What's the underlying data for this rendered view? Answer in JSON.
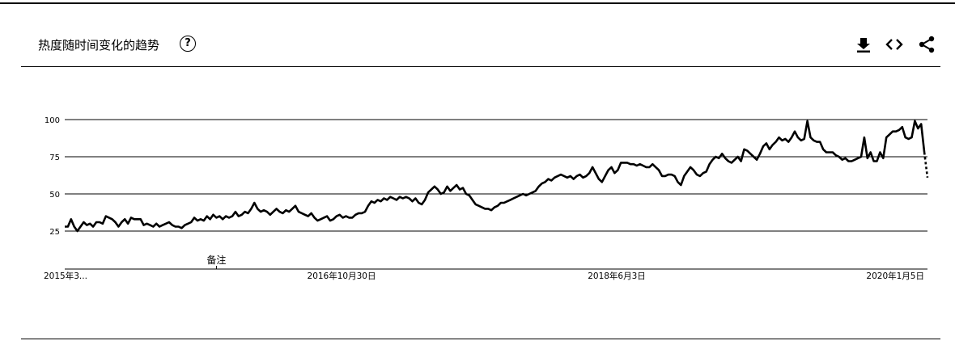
{
  "header": {
    "title": "热度随时间变化的趋势",
    "help_icon": "help-circle-icon",
    "actions": [
      {
        "name": "download-button",
        "icon": "download-icon"
      },
      {
        "name": "embed-button",
        "icon": "code-icon"
      },
      {
        "name": "share-button",
        "icon": "share-icon"
      }
    ]
  },
  "chart_data": {
    "type": "line",
    "title": "",
    "xlabel": "",
    "ylabel": "",
    "ylim": [
      0,
      100
    ],
    "yticks": [
      25,
      50,
      75,
      100
    ],
    "grid": true,
    "x_tick_labels": [
      "2015年3...",
      "2016年10月30日",
      "2018年6月3日",
      "2020年1月5日"
    ],
    "annotation": {
      "text": "备注",
      "x_index": 48
    },
    "series": [
      {
        "values": [
          28,
          28,
          33,
          28,
          25,
          28,
          31,
          29,
          30,
          28,
          31,
          31,
          30,
          35,
          34,
          33,
          31,
          28,
          31,
          33,
          30,
          34,
          33,
          33,
          33,
          29,
          30,
          29,
          28,
          30,
          28,
          29,
          30,
          31,
          29,
          28,
          28,
          27,
          29,
          30,
          31,
          34,
          32,
          33,
          32,
          35,
          33,
          36,
          34,
          35,
          33,
          35,
          34,
          35,
          38,
          35,
          36,
          38,
          37,
          40,
          44,
          40,
          38,
          39,
          38,
          36,
          38,
          40,
          38,
          37,
          39,
          38,
          40,
          42,
          38,
          37,
          36,
          35,
          37,
          34,
          32,
          33,
          34,
          35,
          32,
          33,
          35,
          36,
          34,
          35,
          34,
          34,
          36,
          37,
          37,
          38,
          42,
          45,
          44,
          46,
          45,
          47,
          46,
          48,
          47,
          46,
          48,
          47,
          48,
          47,
          45,
          47,
          44,
          43,
          46,
          51,
          53,
          55,
          53,
          50,
          51,
          55,
          52,
          54,
          56,
          53,
          54,
          50,
          49,
          46,
          43,
          42,
          41,
          40,
          40,
          39,
          41,
          42,
          44,
          44,
          45,
          46,
          47,
          48,
          49,
          50,
          49,
          50,
          51,
          52,
          55,
          57,
          58,
          60,
          59,
          61,
          62,
          63,
          62,
          61,
          62,
          60,
          62,
          63,
          61,
          62,
          64,
          68,
          64,
          60,
          58,
          62,
          66,
          68,
          64,
          66,
          71,
          71,
          71,
          70,
          70,
          69,
          70,
          69,
          68,
          68,
          70,
          68,
          66,
          62,
          62,
          63,
          63,
          62,
          58,
          56,
          62,
          65,
          68,
          66,
          63,
          62,
          64,
          65,
          70,
          73,
          75,
          74,
          77,
          74,
          72,
          71,
          73,
          75,
          72,
          80,
          79,
          77,
          75,
          73,
          77,
          82,
          84,
          80,
          83,
          85,
          88,
          86,
          87,
          85,
          88,
          92,
          88,
          86,
          87,
          99,
          88,
          86,
          85,
          85,
          80,
          78,
          78,
          78,
          76,
          75,
          73,
          74,
          72,
          72,
          73,
          74,
          75,
          88,
          74,
          78,
          72,
          72,
          78,
          74,
          88,
          90,
          92,
          92,
          93,
          95,
          88,
          87,
          88,
          99,
          94,
          97,
          78
        ],
        "partial_values": [
          78,
          61
        ]
      }
    ]
  }
}
